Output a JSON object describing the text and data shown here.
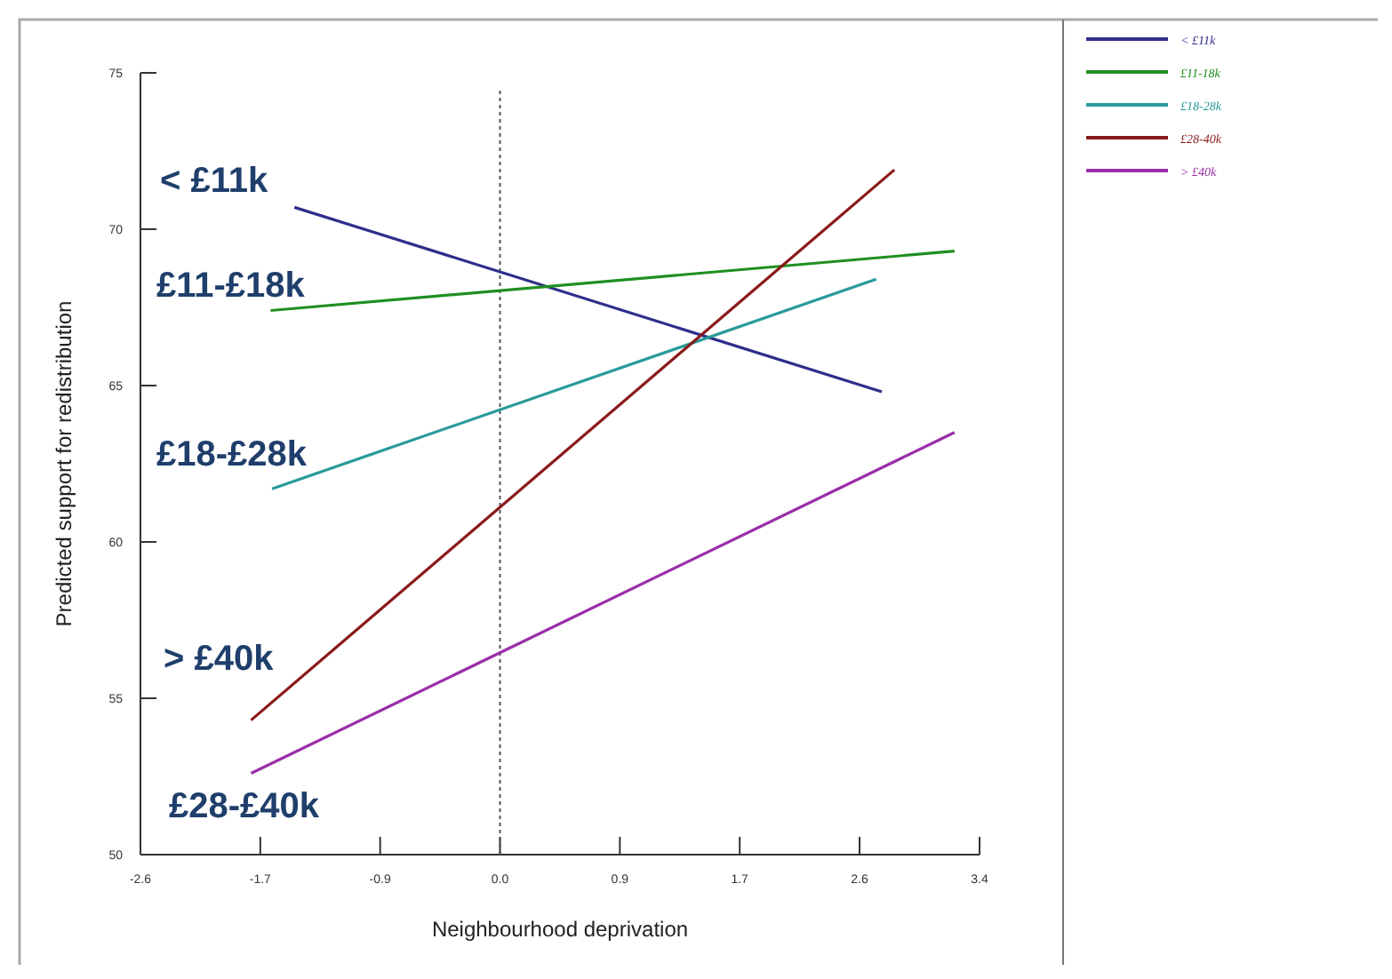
{
  "chart_data": {
    "type": "line",
    "xlabel": "Neighbourhood deprivation",
    "ylabel": "Predicted support for redistribution",
    "xlim": [
      -2.571,
      3.429
    ],
    "xticks": [
      {
        "value": -2.571,
        "label": "-2.6"
      },
      {
        "value": -1.714,
        "label": "-1.7"
      },
      {
        "value": -0.857,
        "label": "-0.9"
      },
      {
        "value": 0,
        "label": "0.0"
      },
      {
        "value": 0.857,
        "label": "0.9"
      },
      {
        "value": 1.714,
        "label": "1.7"
      },
      {
        "value": 2.571,
        "label": "2.6"
      },
      {
        "value": 3.429,
        "label": "3.4"
      }
    ],
    "ylim": [
      50,
      75
    ],
    "yticks": [
      50,
      55,
      60,
      65,
      70,
      75
    ],
    "grid": false,
    "legend": "right",
    "marker": "none",
    "line_style": "solid",
    "series": [
      {
        "name": "< £11k",
        "color": "#2e2f8a",
        "x": [
          -1.47,
          2.73
        ],
        "values": [
          70.7,
          64.8
        ]
      },
      {
        "name": "£11-18k",
        "color": "#1f8f1f",
        "x": [
          -1.64,
          3.25
        ],
        "values": [
          67.4,
          69.3
        ]
      },
      {
        "name": "£18-28k",
        "color": "#2a9a9a",
        "x": [
          -1.63,
          2.69
        ],
        "values": [
          61.7,
          68.4
        ]
      },
      {
        "name": "£28-40k",
        "color": "#8b1a1a",
        "x": [
          -1.78,
          2.82
        ],
        "values": [
          54.3,
          71.9
        ]
      },
      {
        "name": "> £40k",
        "color": "#9a2fa8",
        "x": [
          -1.78,
          3.25
        ],
        "values": [
          52.6,
          63.5
        ]
      }
    ],
    "ref_lines": [
      {
        "axis": "x",
        "value": 0,
        "label": null,
        "line_style": "dotted",
        "color": "#555555"
      }
    ],
    "annotations": [
      "< £11k",
      "£11-£18k",
      "£18-£28k",
      "> £40k",
      "£28-£40k"
    ]
  }
}
